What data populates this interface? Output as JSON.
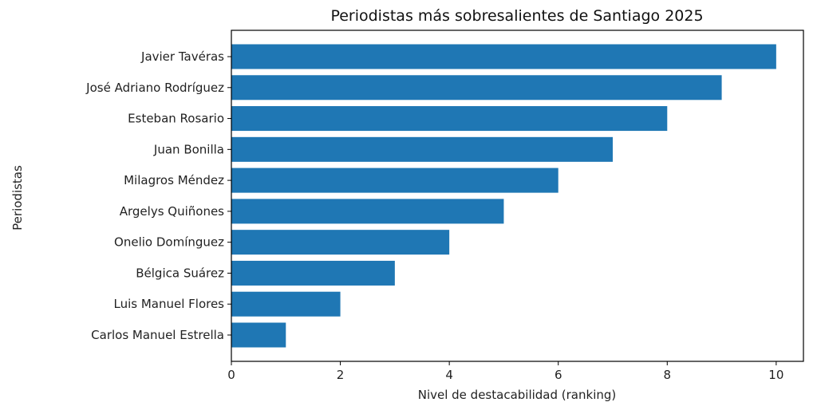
{
  "chart_data": {
    "type": "bar",
    "orientation": "horizontal",
    "title": "Periodistas más sobresalientes de Santiago 2025",
    "xlabel": "Nivel de destacabilidad (ranking)",
    "ylabel": "Periodistas",
    "xlim": [
      0,
      10.5
    ],
    "xticks": [
      "0",
      "2",
      "4",
      "6",
      "8",
      "10"
    ],
    "grid": false,
    "legend": "none",
    "bar_color": "#1f77b4",
    "categories": [
      "Javier Tavéras",
      "José Adriano Rodríguez",
      "Esteban Rosario",
      "Juan Bonilla",
      "Milagros Méndez",
      "Argelys Quiñones",
      "Onelio Domínguez",
      "Bélgica Suárez",
      "Luis Manuel Flores",
      "Carlos Manuel Estrella"
    ],
    "values": [
      10,
      9,
      8,
      7,
      6,
      5,
      4,
      3,
      2,
      1
    ]
  }
}
